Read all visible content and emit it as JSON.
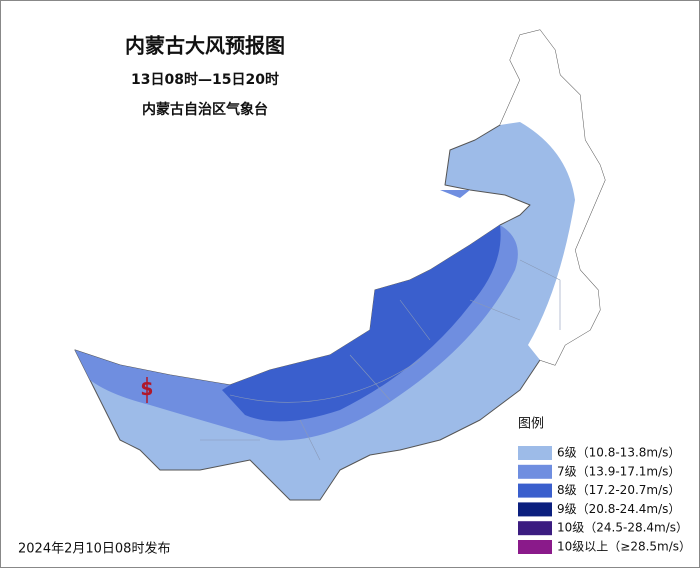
{
  "title": "内蒙古大风预报图",
  "subtitle": "13日08时—15日20时",
  "issuer": "内蒙古自治区气象台",
  "map_symbol": "S",
  "legend": {
    "title": "图例",
    "items": [
      {
        "label": "6级（10.8-13.8m/s）",
        "color": "#9dbbe8"
      },
      {
        "label": "7级（13.9-17.1m/s）",
        "color": "#6f8ee0"
      },
      {
        "label": "8级（17.2-20.7m/s）",
        "color": "#3a5fcd"
      },
      {
        "label": "9级（20.8-24.4m/s）",
        "color": "#0b1f7e"
      },
      {
        "label": "10级（24.5-28.4m/s）",
        "color": "#3b1c80"
      },
      {
        "label": "10级以上（≥28.5m/s）",
        "color": "#8a1a8a"
      }
    ]
  },
  "footer": "2024年2月10日08时发布"
}
